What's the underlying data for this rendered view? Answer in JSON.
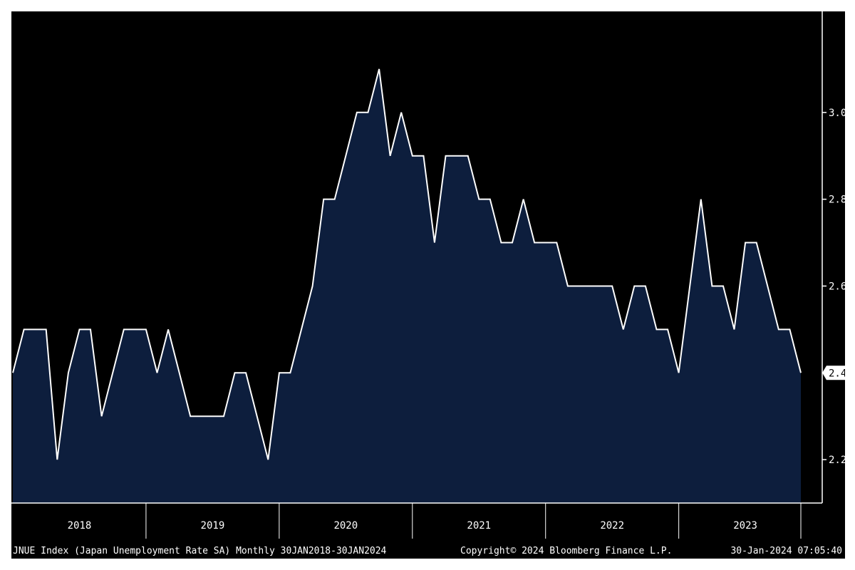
{
  "chart_data": {
    "type": "area",
    "title": "",
    "xlabel": "",
    "ylabel": "",
    "ylim": [
      2.1,
      3.2
    ],
    "y_ticks": [
      "2.2",
      "2.4",
      "2.6",
      "2.8",
      "3.0"
    ],
    "x_ticks": [
      "2018",
      "2019",
      "2020",
      "2021",
      "2022",
      "2023"
    ],
    "grid": false,
    "last_value_label": "2.4",
    "colors": {
      "background": "#000000",
      "fill": "#0d1e3d",
      "line": "#ffffff",
      "text": "#ffffff"
    },
    "series": [
      {
        "x": [
          "2018-01",
          "2018-02",
          "2018-03",
          "2018-04",
          "2018-05",
          "2018-06",
          "2018-07",
          "2018-08",
          "2018-09",
          "2018-10",
          "2018-11",
          "2018-12",
          "2019-01",
          "2019-02",
          "2019-03",
          "2019-04",
          "2019-05",
          "2019-06",
          "2019-07",
          "2019-08",
          "2019-09",
          "2019-10",
          "2019-11",
          "2019-12",
          "2020-01",
          "2020-02",
          "2020-03",
          "2020-04",
          "2020-05",
          "2020-06",
          "2020-07",
          "2020-08",
          "2020-09",
          "2020-10",
          "2020-11",
          "2020-12",
          "2021-01",
          "2021-02",
          "2021-03",
          "2021-04",
          "2021-05",
          "2021-06",
          "2021-07",
          "2021-08",
          "2021-09",
          "2021-10",
          "2021-11",
          "2021-12",
          "2022-01",
          "2022-02",
          "2022-03",
          "2022-04",
          "2022-05",
          "2022-06",
          "2022-07",
          "2022-08",
          "2022-09",
          "2022-10",
          "2022-11",
          "2022-12",
          "2023-01",
          "2023-02",
          "2023-03",
          "2023-04",
          "2023-05",
          "2023-06",
          "2023-07",
          "2023-08",
          "2023-09",
          "2023-10",
          "2023-11",
          "2023-12"
        ],
        "values": [
          2.4,
          2.5,
          2.5,
          2.5,
          2.2,
          2.4,
          2.5,
          2.5,
          2.3,
          2.4,
          2.5,
          2.5,
          2.5,
          2.4,
          2.5,
          2.4,
          2.3,
          2.3,
          2.3,
          2.3,
          2.4,
          2.4,
          2.3,
          2.2,
          2.4,
          2.4,
          2.5,
          2.6,
          2.8,
          2.8,
          2.9,
          3.0,
          3.0,
          3.1,
          2.9,
          3.0,
          2.9,
          2.9,
          2.7,
          2.9,
          2.9,
          2.9,
          2.8,
          2.8,
          2.7,
          2.7,
          2.8,
          2.7,
          2.7,
          2.7,
          2.6,
          2.6,
          2.6,
          2.6,
          2.6,
          2.5,
          2.6,
          2.6,
          2.5,
          2.5,
          2.4,
          2.6,
          2.8,
          2.6,
          2.6,
          2.5,
          2.7,
          2.7,
          2.6,
          2.5,
          2.5,
          2.4
        ]
      }
    ]
  },
  "footer": {
    "left": "JNUE Index (Japan Unemployment Rate SA)  Monthly 30JAN2018-30JAN2024",
    "center": "Copyright© 2024 Bloomberg Finance L.P.",
    "right": "30-Jan-2024 07:05:40"
  }
}
